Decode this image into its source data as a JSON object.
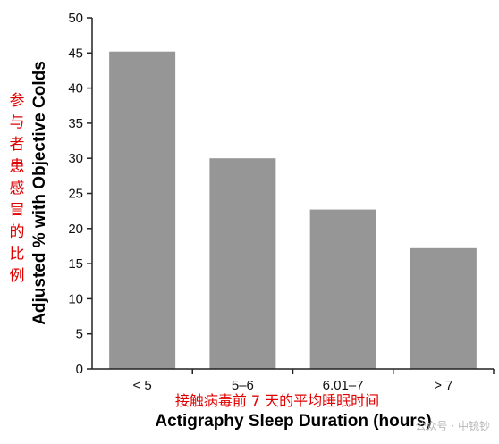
{
  "chart_data": {
    "type": "bar",
    "categories": [
      "< 5",
      "5–6",
      "6.01–7",
      "> 7"
    ],
    "values": [
      45.2,
      30.0,
      22.7,
      17.2
    ],
    "ylabel": "Adjusted % with Objective Colds",
    "ylabel_cn": "参与者患感冒的比例",
    "xlabel": "Actigraphy Sleep Duration (hours)",
    "xlabel_cn": "接触病毒前 7 天的平均睡眠时间",
    "ylim": [
      0,
      50
    ],
    "yticks": [
      0,
      5,
      10,
      15,
      20,
      25,
      30,
      35,
      40,
      45,
      50
    ],
    "bar_color": "#969696",
    "grid": false,
    "legend": "none"
  },
  "watermark": "公众号 · 中铳钞"
}
